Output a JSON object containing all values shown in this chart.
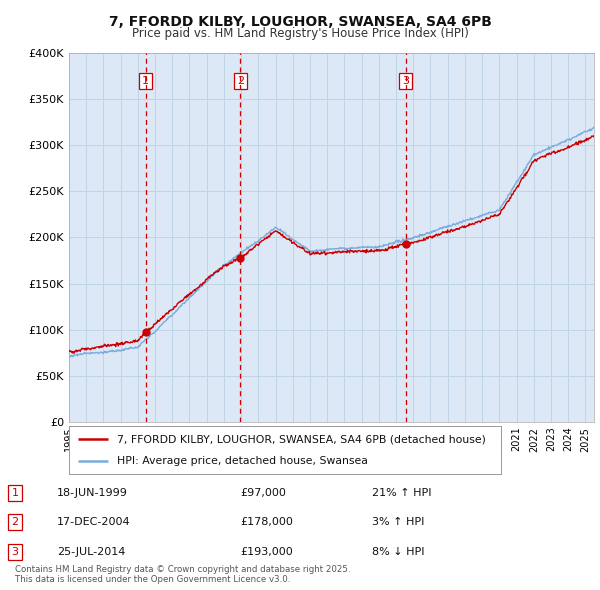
{
  "title": "7, FFORDD KILBY, LOUGHOR, SWANSEA, SA4 6PB",
  "subtitle": "Price paid vs. HM Land Registry's House Price Index (HPI)",
  "xlim_start": 1995.0,
  "xlim_end": 2025.5,
  "ylim": [
    0,
    400000
  ],
  "yticks": [
    0,
    50000,
    100000,
    150000,
    200000,
    250000,
    300000,
    350000,
    400000
  ],
  "transactions": [
    {
      "date_decimal": 1999.46,
      "price": 97000,
      "label": "1"
    },
    {
      "date_decimal": 2004.96,
      "price": 178000,
      "label": "2"
    },
    {
      "date_decimal": 2014.56,
      "price": 193000,
      "label": "3"
    }
  ],
  "sale_line_color": "#cc0000",
  "hpi_line_color": "#7aaddc",
  "background_color": "#dce8f5",
  "grid_color": "#c0d4e8",
  "table_entries": [
    {
      "num": "1",
      "date": "18-JUN-1999",
      "price": "£97,000",
      "hpi": "21% ↑ HPI"
    },
    {
      "num": "2",
      "date": "17-DEC-2004",
      "price": "£178,000",
      "hpi": "3% ↑ HPI"
    },
    {
      "num": "3",
      "date": "25-JUL-2014",
      "price": "£193,000",
      "hpi": "8% ↓ HPI"
    }
  ],
  "footer": "Contains HM Land Registry data © Crown copyright and database right 2025.\nThis data is licensed under the Open Government Licence v3.0.",
  "legend_entries": [
    "7, FFORDD KILBY, LOUGHOR, SWANSEA, SA4 6PB (detached house)",
    "HPI: Average price, detached house, Swansea"
  ]
}
